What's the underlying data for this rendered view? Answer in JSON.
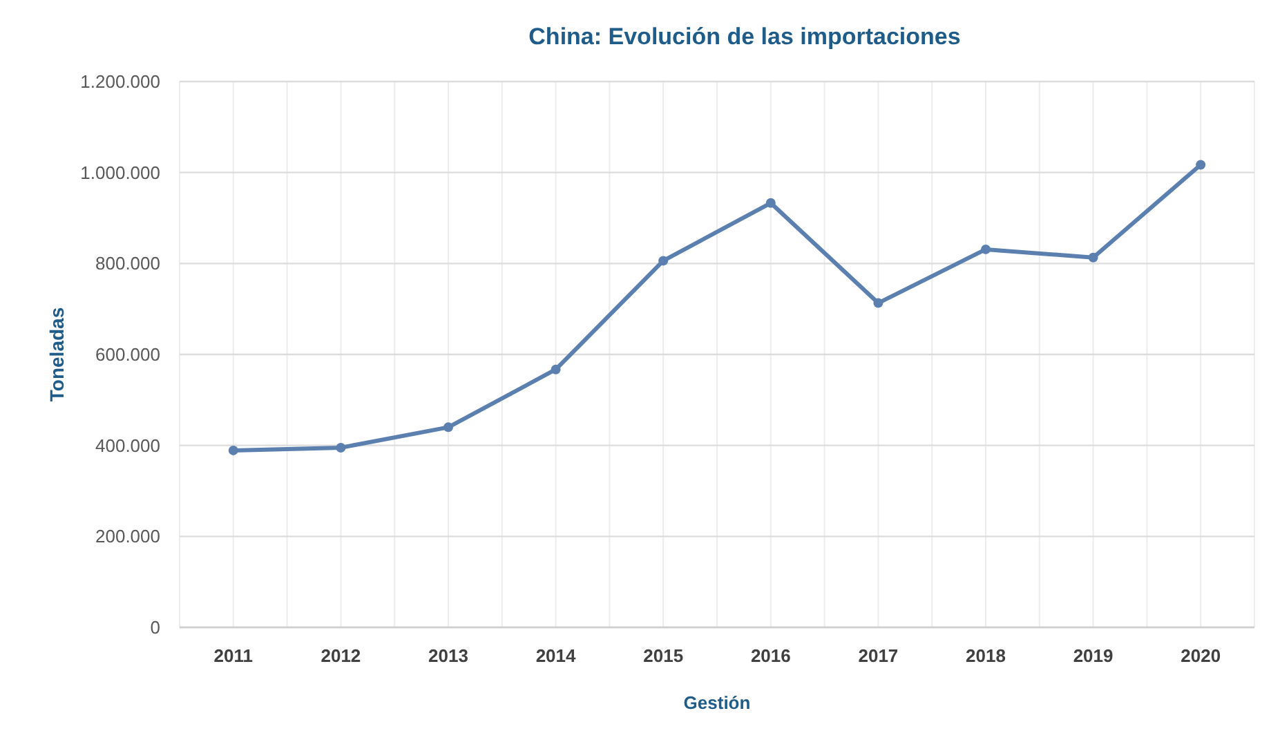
{
  "chart_data": {
    "type": "line",
    "title": "China: Evolución de las importaciones",
    "xlabel": "Gestión",
    "ylabel": "Toneladas",
    "categories": [
      "2011",
      "2012",
      "2013",
      "2014",
      "2015",
      "2016",
      "2017",
      "2018",
      "2019",
      "2020"
    ],
    "series": [
      {
        "color": "#5b80b0",
        "values": [
          389000,
          395000,
          440000,
          567000,
          806000,
          933000,
          713000,
          831000,
          813000,
          1017000
        ]
      }
    ],
    "ylim": [
      0,
      1200000
    ],
    "yticks": [
      0,
      {
        "value": 200000,
        "label": "200.000"
      },
      {
        "value": 400000,
        "label": "400.000"
      },
      {
        "value": 600000,
        "label": "600.000"
      },
      {
        "value": 800000,
        "label": "800.000"
      },
      {
        "value": 1000000,
        "label": "1.000.000"
      },
      {
        "value": 1200000,
        "label": "1.200.000"
      }
    ],
    "grid": true,
    "marker": "circle",
    "line_style": "solid"
  }
}
